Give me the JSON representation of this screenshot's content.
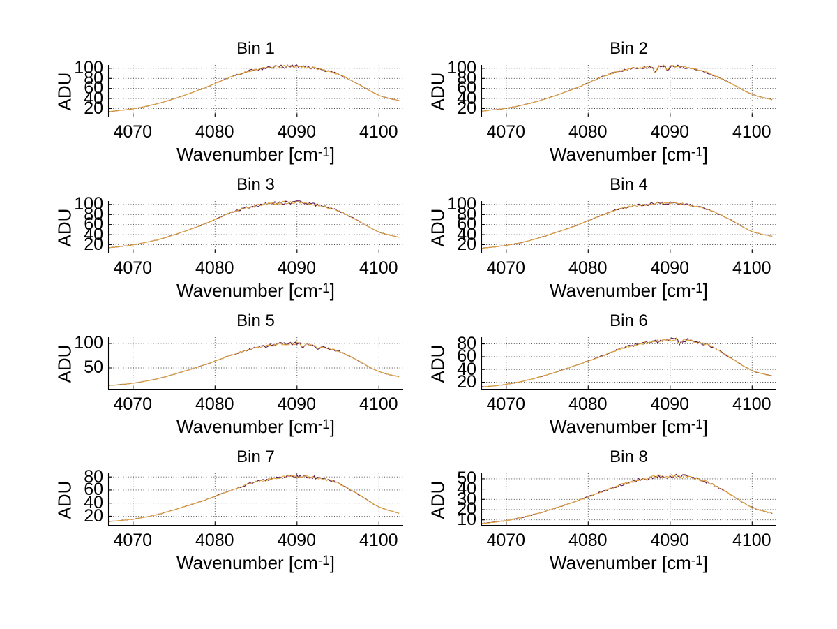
{
  "figure": {
    "background": "#ffffff"
  },
  "shared": {
    "ylabel": "ADU",
    "xlabel_full": "Wavenumber [cm^-1]",
    "xlabel_main": "Wavenumber [cm",
    "xlabel_sup": "-1",
    "xlabel_close": "]",
    "xticks": [
      4070,
      4080,
      4090,
      4100
    ],
    "xlim": [
      4067,
      4103
    ],
    "grid": "dotted"
  },
  "colors": {
    "spectrum_line": "#dfa43c",
    "underlying_line": "#5c1650",
    "axis": "#000000",
    "grid_dot": "#404040",
    "text": "#000000",
    "background": "#ffffff"
  },
  "chart_data": [
    {
      "type": "line",
      "title": "Bin 1",
      "ylabel": "ADU",
      "xlabel": "Wavenumber [cm^-1]",
      "legend": "none",
      "grid": true,
      "x": [
        4067,
        4070,
        4073,
        4076,
        4079,
        4082,
        4084.5,
        4087,
        4089,
        4091,
        4093,
        4095,
        4097.5,
        4100,
        4102.5
      ],
      "y": [
        13,
        19,
        29,
        44,
        62,
        82,
        95,
        101,
        103,
        102,
        97,
        88,
        68,
        46,
        35
      ],
      "yticks": [
        20,
        40,
        60,
        80,
        100
      ],
      "ylim": [
        2,
        106
      ],
      "xticks": [
        4070,
        4080,
        4090,
        4100
      ],
      "xlim": [
        4067,
        4103
      ],
      "dips": [],
      "noise": 2.4,
      "seed": 11
    },
    {
      "type": "line",
      "title": "Bin 2",
      "ylabel": "ADU",
      "xlabel": "Wavenumber [cm^-1]",
      "legend": "none",
      "grid": true,
      "x": [
        4067,
        4070,
        4073,
        4076,
        4079,
        4082,
        4084.5,
        4087,
        4089,
        4091,
        4093,
        4095,
        4097.5,
        4100,
        4102.5
      ],
      "y": [
        14,
        20,
        30,
        45,
        63,
        84,
        96,
        102,
        104,
        103,
        98,
        88,
        69,
        48,
        37
      ],
      "yticks": [
        20,
        40,
        60,
        80,
        100
      ],
      "ylim": [
        2,
        106
      ],
      "xticks": [
        4070,
        4080,
        4090,
        4100
      ],
      "xlim": [
        4067,
        4103
      ],
      "dips": [
        [
          4088.2,
          13
        ],
        [
          4089.7,
          9
        ]
      ],
      "noise": 2.4,
      "seed": 22
    },
    {
      "type": "line",
      "title": "Bin 3",
      "ylabel": "ADU",
      "xlabel": "Wavenumber [cm^-1]",
      "legend": "none",
      "grid": true,
      "x": [
        4067,
        4070,
        4073,
        4076,
        4079,
        4082,
        4084.5,
        4087,
        4089,
        4091,
        4093,
        4095,
        4097.5,
        4100,
        4102.5
      ],
      "y": [
        13,
        19,
        29,
        44,
        62,
        83,
        95,
        101,
        103,
        102,
        96,
        87,
        67,
        45,
        34
      ],
      "yticks": [
        20,
        40,
        60,
        80,
        100
      ],
      "ylim": [
        2,
        106
      ],
      "xticks": [
        4070,
        4080,
        4090,
        4100
      ],
      "xlim": [
        4067,
        4103
      ],
      "dips": [],
      "noise": 2.6,
      "seed": 33
    },
    {
      "type": "line",
      "title": "Bin 4",
      "ylabel": "ADU",
      "xlabel": "Wavenumber [cm^-1]",
      "legend": "none",
      "grid": true,
      "x": [
        4067,
        4070,
        4073,
        4076,
        4079,
        4082,
        4084.5,
        4087,
        4089,
        4091,
        4093,
        4095,
        4097.5,
        4100,
        4102.5
      ],
      "y": [
        12,
        18,
        28,
        43,
        60,
        80,
        93,
        99,
        102,
        101,
        96,
        87,
        68,
        46,
        36
      ],
      "yticks": [
        20,
        40,
        60,
        80,
        100
      ],
      "ylim": [
        2,
        106
      ],
      "xticks": [
        4070,
        4080,
        4090,
        4100
      ],
      "xlim": [
        4067,
        4103
      ],
      "dips": [],
      "noise": 2.2,
      "seed": 44
    },
    {
      "type": "line",
      "title": "Bin 5",
      "ylabel": "ADU",
      "xlabel": "Wavenumber [cm^-1]",
      "legend": "none",
      "grid": true,
      "x": [
        4067,
        4070,
        4073,
        4076,
        4079,
        4082,
        4084.5,
        4087,
        4089,
        4091,
        4093,
        4095,
        4097.5,
        4100,
        4102.5
      ],
      "y": [
        13,
        18,
        27,
        41,
        57,
        75,
        88,
        96,
        99,
        98,
        92,
        84,
        64,
        42,
        31
      ],
      "yticks": [
        50,
        100
      ],
      "ylim": [
        5,
        112
      ],
      "xticks": [
        4070,
        4080,
        4090,
        4100
      ],
      "xlim": [
        4067,
        4103
      ],
      "dips": [
        [
          4090.8,
          7
        ],
        [
          4092.6,
          6
        ]
      ],
      "noise": 2.4,
      "seed": 55
    },
    {
      "type": "line",
      "title": "Bin 6",
      "ylabel": "ADU",
      "xlabel": "Wavenumber [cm^-1]",
      "legend": "none",
      "grid": true,
      "x": [
        4067,
        4070,
        4073,
        4076,
        4079,
        4082,
        4084.5,
        4087,
        4089,
        4091,
        4093,
        4095,
        4097.5,
        4100,
        4102.5
      ],
      "y": [
        12,
        16,
        24,
        35,
        48,
        62,
        74,
        81,
        85,
        86,
        83,
        76,
        57,
        38,
        29
      ],
      "yticks": [
        20,
        40,
        60,
        80
      ],
      "ylim": [
        8,
        90
      ],
      "xticks": [
        4070,
        4080,
        4090,
        4100
      ],
      "xlim": [
        4067,
        4103
      ],
      "dips": [
        [
          4091.2,
          6
        ]
      ],
      "noise": 2.2,
      "seed": 66
    },
    {
      "type": "line",
      "title": "Bin 7",
      "ylabel": "ADU",
      "xlabel": "Wavenumber [cm^-1]",
      "legend": "none",
      "grid": true,
      "x": [
        4067,
        4070,
        4073,
        4076,
        4079,
        4082,
        4084.5,
        4087,
        4089,
        4091,
        4093,
        4095,
        4097.5,
        4100,
        4102.5
      ],
      "y": [
        11,
        15,
        22,
        33,
        45,
        59,
        70,
        77,
        80,
        80,
        77,
        70,
        53,
        34,
        24
      ],
      "yticks": [
        20,
        40,
        60,
        80
      ],
      "ylim": [
        5,
        85
      ],
      "xticks": [
        4070,
        4080,
        4090,
        4100
      ],
      "xlim": [
        4067,
        4103
      ],
      "dips": [],
      "noise": 1.8,
      "seed": 77
    },
    {
      "type": "line",
      "title": "Bin 8",
      "ylabel": "ADU",
      "xlabel": "Wavenumber [cm^-1]",
      "legend": "none",
      "grid": true,
      "x": [
        4067,
        4070,
        4073,
        4076,
        4079,
        4082,
        4084.5,
        4087,
        4089,
        4091,
        4093,
        4095,
        4097.5,
        4100,
        4102.5
      ],
      "y": [
        6,
        9,
        14,
        21,
        29,
        38,
        45,
        50,
        52,
        52,
        50,
        45,
        34,
        22,
        16
      ],
      "yticks": [
        10,
        20,
        30,
        40,
        50
      ],
      "ylim": [
        4,
        55
      ],
      "xticks": [
        4070,
        4080,
        4090,
        4100
      ],
      "xlim": [
        4067,
        4103
      ],
      "dips": [],
      "noise": 1.6,
      "seed": 88
    }
  ]
}
